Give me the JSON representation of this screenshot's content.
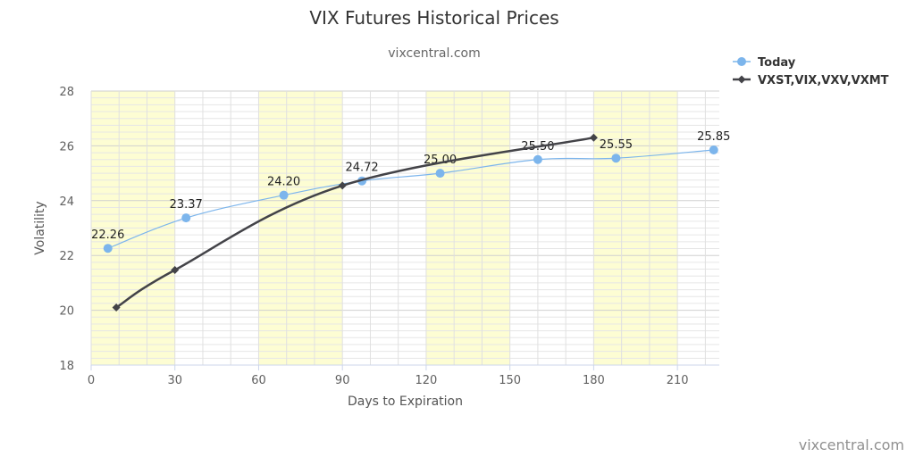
{
  "chart_data": {
    "type": "line",
    "title": "VIX Futures Historical Prices",
    "subtitle": "vixcentral.com",
    "credit": "vixcentral.com",
    "xlabel": "Days to Expiration",
    "ylabel": "Volatility",
    "xlim": [
      0,
      225
    ],
    "ylim": [
      18,
      28
    ],
    "xticks": [
      0,
      30,
      60,
      90,
      120,
      150,
      180,
      210
    ],
    "yticks": [
      18,
      20,
      22,
      24,
      26,
      28
    ],
    "shaded_bands": [
      [
        0,
        30
      ],
      [
        60,
        90
      ],
      [
        120,
        150
      ],
      [
        180,
        210
      ]
    ],
    "legend_position": "top-right",
    "series": [
      {
        "name": "Today",
        "color": "#7cb5ec",
        "marker": "circle",
        "points": [
          {
            "x": 6,
            "y": 22.26,
            "label": "22.26"
          },
          {
            "x": 34,
            "y": 23.37,
            "label": "23.37"
          },
          {
            "x": 69,
            "y": 24.2,
            "label": "24.20"
          },
          {
            "x": 97,
            "y": 24.72,
            "label": "24.72"
          },
          {
            "x": 125,
            "y": 25.0,
            "label": "25.00"
          },
          {
            "x": 160,
            "y": 25.5,
            "label": "25.50"
          },
          {
            "x": 188,
            "y": 25.55,
            "label": "25.55"
          },
          {
            "x": 223,
            "y": 25.85,
            "label": "25.85"
          }
        ]
      },
      {
        "name": "VXST,VIX,VXV,VXMT",
        "color": "#434348",
        "marker": "diamond",
        "points": [
          {
            "x": 9,
            "y": 20.1
          },
          {
            "x": 30,
            "y": 21.47
          },
          {
            "x": 90,
            "y": 24.55
          },
          {
            "x": 180,
            "y": 26.3
          }
        ]
      }
    ]
  }
}
